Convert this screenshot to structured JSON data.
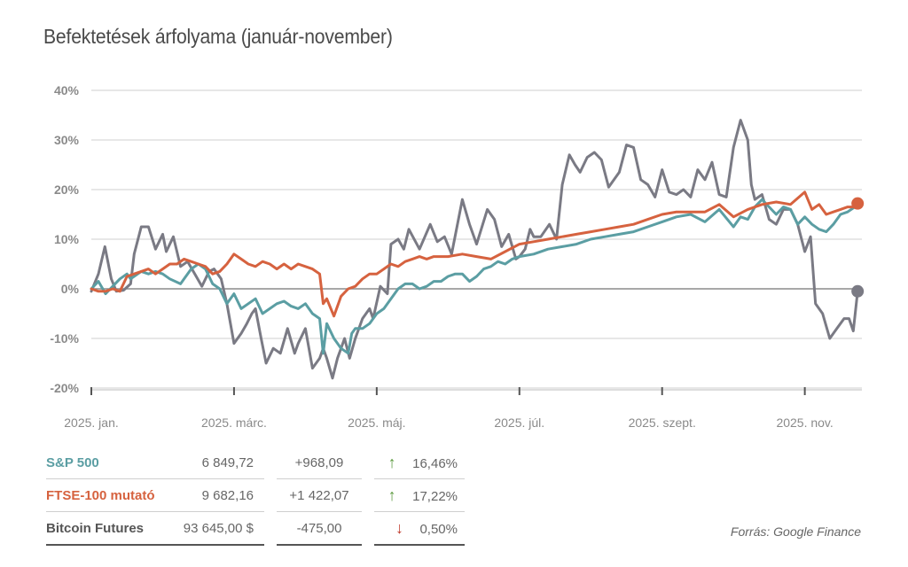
{
  "title": "Befektetések árfolyama (január-november)",
  "source": "Forrás: Google Finance",
  "chart_data": {
    "type": "line",
    "ylim": [
      -20,
      40
    ],
    "yticks": [
      40,
      30,
      20,
      10,
      0,
      -10,
      -20
    ],
    "ytick_labels": [
      "40%",
      "30%",
      "20%",
      "10%",
      "0%",
      "-10%",
      "-20%"
    ],
    "xlim": [
      0,
      10.8
    ],
    "xticks": [
      0,
      2,
      4,
      6,
      8,
      10
    ],
    "xtick_labels": [
      "2025. jan.",
      "2025. márc.",
      "2025. máj.",
      "2025. júl.",
      "2025. szept.",
      "2025. nov."
    ],
    "series": [
      {
        "name": "Bitcoin Futures",
        "color": "#7a7a84",
        "end_marker": true,
        "x": [
          0,
          0.1,
          0.19,
          0.28,
          0.35,
          0.45,
          0.55,
          0.6,
          0.7,
          0.8,
          0.9,
          1.0,
          1.05,
          1.15,
          1.25,
          1.35,
          1.45,
          1.55,
          1.65,
          1.72,
          1.82,
          1.9,
          2.0,
          2.1,
          2.18,
          2.25,
          2.3,
          2.38,
          2.45,
          2.55,
          2.65,
          2.75,
          2.85,
          2.9,
          3.0,
          3.1,
          3.2,
          3.25,
          3.3,
          3.38,
          3.45,
          3.55,
          3.62,
          3.7,
          3.8,
          3.9,
          3.95,
          4.05,
          4.15,
          4.2,
          4.3,
          4.38,
          4.45,
          4.6,
          4.75,
          4.85,
          4.95,
          5.05,
          5.2,
          5.3,
          5.4,
          5.55,
          5.65,
          5.75,
          5.85,
          5.95,
          6.0,
          6.08,
          6.15,
          6.2,
          6.3,
          6.42,
          6.52,
          6.6,
          6.7,
          6.78,
          6.85,
          6.95,
          7.05,
          7.15,
          7.25,
          7.4,
          7.5,
          7.6,
          7.7,
          7.8,
          7.9,
          8.0,
          8.1,
          8.2,
          8.3,
          8.4,
          8.5,
          8.6,
          8.7,
          8.8,
          8.9,
          9.0,
          9.1,
          9.2,
          9.25,
          9.3,
          9.4,
          9.5,
          9.6,
          9.7,
          9.8,
          9.9,
          10.0,
          10.08,
          10.15,
          10.25,
          10.35,
          10.45,
          10.55,
          10.62,
          10.68,
          10.74
        ],
        "y": [
          -0.5,
          3,
          8.5,
          2,
          -0.5,
          -0.3,
          1,
          7,
          12.5,
          12.5,
          8,
          11,
          7.5,
          10.5,
          4.5,
          5.5,
          3,
          0.5,
          3.5,
          4,
          2,
          -3,
          -11,
          -9,
          -7,
          -5,
          -4,
          -10,
          -15,
          -12,
          -13,
          -8,
          -13,
          -11,
          -8,
          -16,
          -14,
          -12,
          -14,
          -18,
          -14,
          -10,
          -14,
          -10,
          -6,
          -4,
          -6,
          0.5,
          -1,
          9,
          10,
          8,
          12,
          8,
          13,
          9.5,
          10.5,
          7,
          18,
          13,
          9,
          16,
          14,
          8.5,
          11,
          6,
          6.5,
          8,
          12,
          10.5,
          10.5,
          13,
          10,
          21,
          27,
          25,
          23.5,
          26.5,
          27.5,
          26,
          20.5,
          23.5,
          29,
          28.5,
          22,
          21,
          18.5,
          24,
          19.5,
          19,
          20,
          18.5,
          24,
          22,
          25.5,
          19,
          18.5,
          28.5,
          34,
          30,
          21,
          18,
          19,
          14,
          13,
          16,
          16,
          13,
          7.5,
          10.5,
          -3,
          -5,
          -10,
          -8,
          -6,
          -6,
          -8.5,
          -0.5
        ]
      },
      {
        "name": "S&P 500",
        "color": "#5b9ea3",
        "end_marker": false,
        "x": [
          0,
          0.1,
          0.2,
          0.3,
          0.4,
          0.5,
          0.55,
          0.7,
          0.8,
          0.9,
          1.0,
          1.1,
          1.25,
          1.3,
          1.4,
          1.5,
          1.6,
          1.7,
          1.8,
          1.9,
          2.0,
          2.1,
          2.2,
          2.3,
          2.4,
          2.5,
          2.6,
          2.7,
          2.8,
          2.9,
          3.0,
          3.1,
          3.2,
          3.25,
          3.3,
          3.4,
          3.5,
          3.6,
          3.65,
          3.7,
          3.8,
          3.9,
          4.0,
          4.1,
          4.2,
          4.3,
          4.4,
          4.5,
          4.6,
          4.7,
          4.8,
          4.9,
          5.0,
          5.1,
          5.2,
          5.3,
          5.4,
          5.5,
          5.6,
          5.7,
          5.8,
          5.9,
          6.0,
          6.2,
          6.4,
          6.6,
          6.8,
          7.0,
          7.2,
          7.4,
          7.6,
          7.8,
          8.0,
          8.2,
          8.4,
          8.6,
          8.8,
          9.0,
          9.1,
          9.2,
          9.3,
          9.4,
          9.5,
          9.6,
          9.7,
          9.8,
          9.9,
          10.0,
          10.1,
          10.2,
          10.3,
          10.4,
          10.5,
          10.6,
          10.7,
          10.74
        ],
        "y": [
          0,
          1.5,
          -1,
          0.5,
          2,
          3,
          2,
          3.5,
          3,
          3.5,
          3,
          2,
          1,
          2,
          4,
          5,
          4,
          1,
          0,
          -3,
          -1,
          -4,
          -3,
          -2,
          -5,
          -4,
          -3,
          -2.5,
          -3.5,
          -4,
          -3,
          -5,
          -6,
          -13,
          -7,
          -10,
          -12,
          -13,
          -9,
          -8,
          -8,
          -7,
          -5,
          -4,
          -2,
          0,
          1,
          1,
          0,
          0.5,
          1.5,
          1.5,
          2.5,
          3,
          3,
          1.5,
          2.5,
          4,
          4.5,
          5.5,
          5,
          6,
          6.5,
          7,
          8,
          8.5,
          9,
          10,
          10.5,
          11,
          11.5,
          12.5,
          13.5,
          14.5,
          15,
          13.5,
          16,
          12.5,
          14.5,
          14,
          16.5,
          18,
          16.5,
          15,
          16.5,
          16,
          13,
          14.5,
          13,
          12,
          11.5,
          13,
          15,
          15.5,
          16.5,
          16.5
        ]
      },
      {
        "name": "FTSE-100 mutató",
        "color": "#d6623f",
        "end_marker": true,
        "x": [
          0,
          0.1,
          0.2,
          0.3,
          0.4,
          0.5,
          0.6,
          0.7,
          0.8,
          0.9,
          1.0,
          1.1,
          1.2,
          1.3,
          1.4,
          1.5,
          1.6,
          1.7,
          1.8,
          1.9,
          2.0,
          2.1,
          2.2,
          2.3,
          2.4,
          2.5,
          2.6,
          2.7,
          2.8,
          2.9,
          3.0,
          3.1,
          3.2,
          3.25,
          3.3,
          3.4,
          3.5,
          3.6,
          3.7,
          3.8,
          3.9,
          4.0,
          4.1,
          4.2,
          4.3,
          4.4,
          4.5,
          4.6,
          4.7,
          4.8,
          4.9,
          5.0,
          5.2,
          5.4,
          5.6,
          5.8,
          6.0,
          6.2,
          6.4,
          6.6,
          6.8,
          7.0,
          7.2,
          7.4,
          7.6,
          7.8,
          8.0,
          8.2,
          8.4,
          8.6,
          8.8,
          9.0,
          9.2,
          9.4,
          9.6,
          9.8,
          10.0,
          10.1,
          10.2,
          10.3,
          10.4,
          10.5,
          10.6,
          10.7,
          10.74
        ],
        "y": [
          0,
          -0.5,
          -0.5,
          0,
          -0.5,
          2.5,
          3,
          3.5,
          4,
          3,
          4,
          5,
          5,
          6,
          5.5,
          5,
          4.5,
          3,
          3.5,
          5,
          7,
          6,
          5,
          4.5,
          5.5,
          5,
          4,
          5,
          4,
          5,
          4.5,
          4,
          3,
          -3,
          -2,
          -5.5,
          -1.5,
          0,
          0.5,
          2,
          3,
          3,
          4,
          5,
          4.5,
          5.5,
          6,
          6.5,
          6,
          6.5,
          6.5,
          6.5,
          7,
          6.5,
          6,
          7.5,
          9,
          9.5,
          10,
          10.5,
          11,
          11.5,
          12,
          12.5,
          13,
          14,
          15,
          15.5,
          15.5,
          15.5,
          17,
          14.5,
          16,
          17,
          17.5,
          17,
          19.5,
          16,
          17,
          15,
          15.5,
          16,
          16.5,
          16.5,
          17.2
        ]
      }
    ]
  },
  "table": [
    {
      "name": "S&P 500",
      "color": "#5b9ea3",
      "value": "6 849,72",
      "change": "+968,09",
      "direction": "up",
      "arrow": "↑",
      "arrow_color": "#5c9a3f",
      "pct": "16,46%"
    },
    {
      "name": "FTSE-100 mutató",
      "color": "#d6623f",
      "value": "9 682,16",
      "change": "+1 422,07",
      "direction": "up",
      "arrow": "↑",
      "arrow_color": "#5c9a3f",
      "pct": "17,22%"
    },
    {
      "name": "Bitcoin Futures",
      "color": "#555555",
      "value": "93 645,00 $",
      "change": "-475,00",
      "direction": "down",
      "arrow": "↓",
      "arrow_color": "#c0392b",
      "pct": "0,50%"
    }
  ]
}
